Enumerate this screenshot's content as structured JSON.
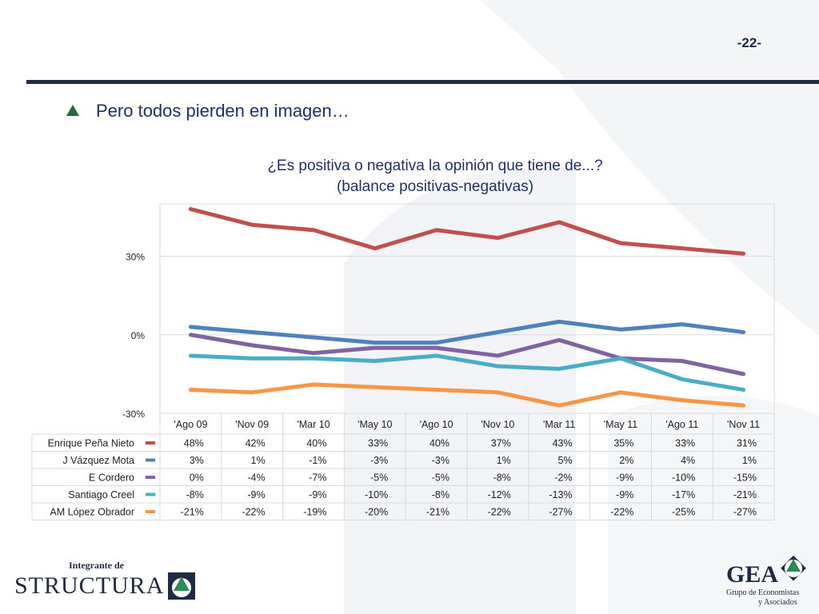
{
  "page": {
    "number": "-22-",
    "bullet": "Pero todos pierden en imagen…"
  },
  "logos": {
    "left_prefix": "Integrante de",
    "left_name": "STRUCTURA",
    "right_name": "GEA",
    "right_sub_1": "Grupo de Economistas",
    "right_sub_2": "y Asociados"
  },
  "colors": {
    "accent_navy": "#1f2a44",
    "title_blue": "#1f2f6b",
    "bullet_green": "#1f6b3a"
  },
  "chart_data": {
    "type": "line",
    "title_line1": "¿Es positiva o negativa la opinión que tiene de...?",
    "title_line2": "(balance positivas-negativas)",
    "categories": [
      "'Ago 09",
      "'Nov 09",
      "'Mar 10",
      "'May 10",
      "'Ago 10",
      "'Nov 10",
      "'Mar 11",
      "'May 11",
      "'Ago 11",
      "'Nov 11"
    ],
    "y_ticks": [
      {
        "value": 30,
        "label": "30%"
      },
      {
        "value": 0,
        "label": "0%"
      },
      {
        "value": -30,
        "label": "-30%"
      }
    ],
    "ylim": [
      -30,
      50
    ],
    "grid": true,
    "legend": "data-table",
    "series": [
      {
        "name": "Enrique Peña Nieto",
        "color": "#c0504d",
        "values": [
          48,
          42,
          40,
          33,
          40,
          37,
          43,
          35,
          33,
          31
        ],
        "labels": [
          "48%",
          "42%",
          "40%",
          "33%",
          "40%",
          "37%",
          "43%",
          "35%",
          "33%",
          "31%"
        ]
      },
      {
        "name": "J Vázquez Mota",
        "color": "#4f81bd",
        "values": [
          3,
          1,
          -1,
          -3,
          -3,
          1,
          5,
          2,
          4,
          1
        ],
        "labels": [
          "3%",
          "1%",
          "-1%",
          "-3%",
          "-3%",
          "1%",
          "5%",
          "2%",
          "4%",
          "1%"
        ]
      },
      {
        "name": "E Cordero",
        "color": "#8064a2",
        "values": [
          0,
          -4,
          -7,
          -5,
          -5,
          -8,
          -2,
          -9,
          -10,
          -15
        ],
        "labels": [
          "0%",
          "-4%",
          "-7%",
          "-5%",
          "-5%",
          "-8%",
          "-2%",
          "-9%",
          "-10%",
          "-15%"
        ]
      },
      {
        "name": "Santiago Creel",
        "color": "#4bacc6",
        "values": [
          -8,
          -9,
          -9,
          -10,
          -8,
          -12,
          -13,
          -9,
          -17,
          -21
        ],
        "labels": [
          "-8%",
          "-9%",
          "-9%",
          "-10%",
          "-8%",
          "-12%",
          "-13%",
          "-9%",
          "-17%",
          "-21%"
        ]
      },
      {
        "name": "AM López Obrador",
        "color": "#f79646",
        "values": [
          -21,
          -22,
          -19,
          -20,
          -21,
          -22,
          -27,
          -22,
          -25,
          -27
        ],
        "labels": [
          "-21%",
          "-22%",
          "-19%",
          "-20%",
          "-21%",
          "-22%",
          "-27%",
          "-22%",
          "-25%",
          "-27%"
        ]
      }
    ]
  }
}
